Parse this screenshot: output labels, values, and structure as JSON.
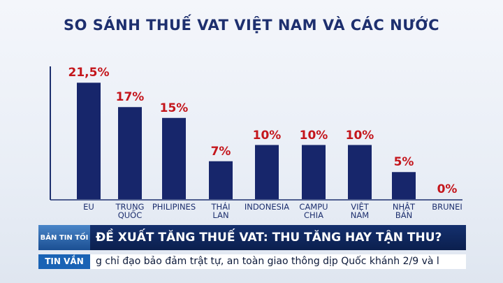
{
  "chart_data": {
    "type": "bar",
    "title": "SO SÁNH THUẾ VAT VIỆT NAM VÀ CÁC NƯỚC",
    "categories": [
      "EU",
      "TRUNG QUỐC",
      "PHILIPINES",
      "THÁI LAN",
      "INDONESIA",
      "CAMPU CHIA",
      "VIỆT NAM",
      "NHẬT BẢN",
      "BRUNEI"
    ],
    "values": [
      21.5,
      17,
      15,
      7,
      10,
      10,
      10,
      5,
      0
    ],
    "value_labels": [
      "21,5%",
      "17%",
      "15%",
      "7%",
      "10%",
      "10%",
      "10%",
      "5%",
      "0%"
    ],
    "color": "#17266b"
  },
  "banner": {
    "logo": "BẢN TIN TỐI",
    "headline": "ĐỀ XUẤT TĂNG THUẾ VAT: THU TĂNG HAY TẬN THU?"
  },
  "ticker": {
    "label": "TIN VẮN",
    "text": "g chỉ đạo bảo đảm trật tự, an toàn giao thông dịp Quốc khánh 2/9 và l"
  }
}
